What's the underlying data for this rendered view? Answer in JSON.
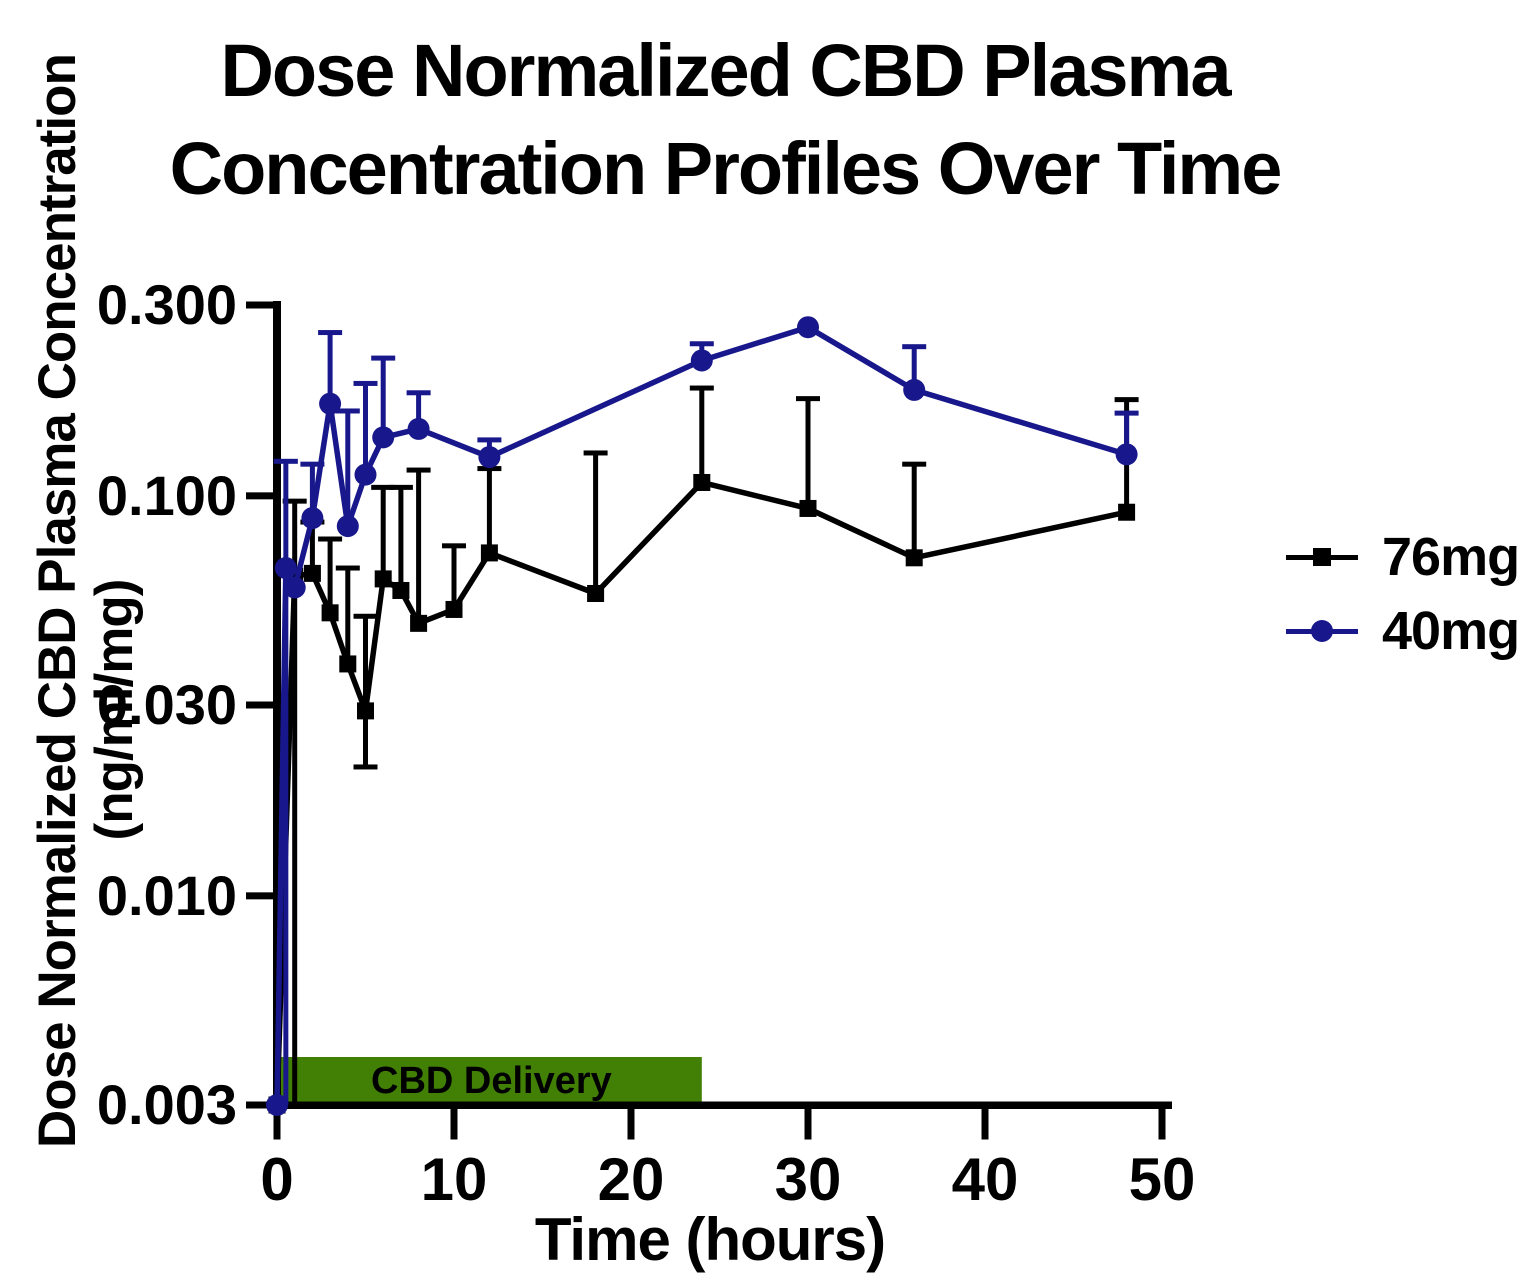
{
  "title_line1": "Dose Normalized CBD Plasma",
  "title_line2": "Concentration Profiles Over Time",
  "axes": {
    "x_label": "Time (hours)",
    "y_label_line1": "Dose Normalized CBD Plasma Concentration",
    "y_label_line2": "(ng/ml/mg)",
    "x_ticks": [
      "0",
      "10",
      "20",
      "30",
      "40",
      "50"
    ],
    "y_ticks": [
      "0.300",
      "0.100",
      "0.030",
      "0.010",
      "0.003"
    ]
  },
  "annotation": {
    "label": "CBD Delivery",
    "t_start": 0,
    "t_end": 24,
    "color": "#417F05"
  },
  "legend": [
    {
      "label": "76mg",
      "color": "#000000",
      "marker": "square"
    },
    {
      "label": "40mg",
      "color": "#18188C",
      "marker": "circle"
    }
  ],
  "chart_data": {
    "type": "line",
    "title": "Dose Normalized CBD Plasma Concentration Profiles Over Time",
    "xlabel": "Time (hours)",
    "ylabel": "Dose Normalized CBD Plasma Concentration (ng/ml/mg)",
    "x_unit": "hours",
    "xlim": [
      0,
      50
    ],
    "ylim_log": [
      0.003,
      0.3
    ],
    "y_scale": "log",
    "legend_position": "right",
    "series": [
      {
        "name": "76mg",
        "color": "#000000",
        "marker": "square",
        "points": [
          {
            "t": 0,
            "v": 0.003
          },
          {
            "t": 1,
            "v": 0.063,
            "eu": 0.097,
            "ed": 0.003
          },
          {
            "t": 2,
            "v": 0.064,
            "eu": 0.086
          },
          {
            "t": 3,
            "v": 0.051,
            "eu": 0.078
          },
          {
            "t": 4,
            "v": 0.038,
            "eu": 0.066
          },
          {
            "t": 5,
            "v": 0.029,
            "eu": 0.05,
            "ed": 0.021
          },
          {
            "t": 6,
            "v": 0.062,
            "eu": 0.105
          },
          {
            "t": 7,
            "v": 0.058,
            "eu": 0.105
          },
          {
            "t": 8,
            "v": 0.048,
            "eu": 0.116
          },
          {
            "t": 10,
            "v": 0.052,
            "eu": 0.075
          },
          {
            "t": 12,
            "v": 0.072,
            "eu": 0.117
          },
          {
            "t": 18,
            "v": 0.057,
            "eu": 0.128
          },
          {
            "t": 24,
            "v": 0.108,
            "eu": 0.186
          },
          {
            "t": 30,
            "v": 0.093,
            "eu": 0.175
          },
          {
            "t": 36,
            "v": 0.07,
            "eu": 0.12
          },
          {
            "t": 48,
            "v": 0.091,
            "eu": 0.174
          }
        ]
      },
      {
        "name": "40mg",
        "color": "#18188C",
        "marker": "circle",
        "points": [
          {
            "t": 0,
            "v": 0.003
          },
          {
            "t": 0.5,
            "v": 0.066,
            "eu": 0.122,
            "ed": 0.003
          },
          {
            "t": 1,
            "v": 0.059
          },
          {
            "t": 2,
            "v": 0.088,
            "eu": 0.12
          },
          {
            "t": 3,
            "v": 0.17,
            "eu": 0.256
          },
          {
            "t": 4,
            "v": 0.084,
            "eu": 0.163
          },
          {
            "t": 5,
            "v": 0.113,
            "eu": 0.191
          },
          {
            "t": 6,
            "v": 0.14,
            "eu": 0.221
          },
          {
            "t": 8,
            "v": 0.147,
            "eu": 0.181
          },
          {
            "t": 12,
            "v": 0.125,
            "eu": 0.138
          },
          {
            "t": 24,
            "v": 0.218,
            "eu": 0.24
          },
          {
            "t": 30,
            "v": 0.264
          },
          {
            "t": 36,
            "v": 0.184,
            "eu": 0.236
          },
          {
            "t": 48,
            "v": 0.127,
            "eu": 0.161
          }
        ]
      }
    ]
  }
}
